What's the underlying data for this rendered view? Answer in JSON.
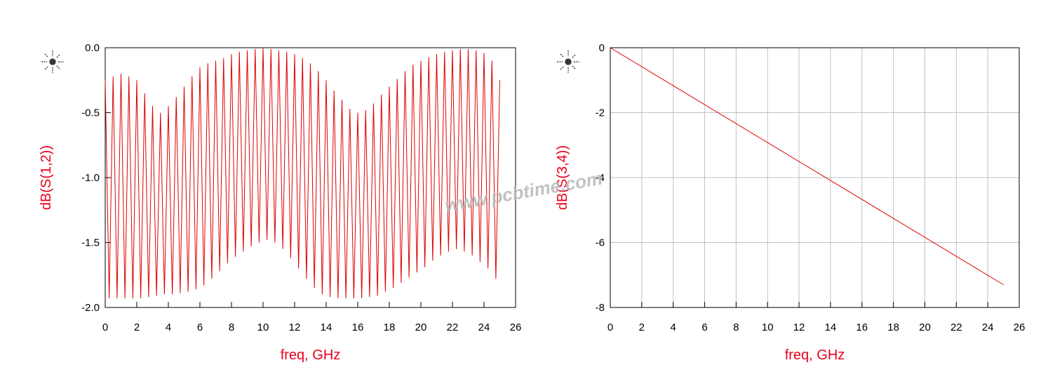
{
  "chart_data": [
    {
      "type": "line",
      "xlabel": "freq, GHz",
      "ylabel": "dB(S(1,2))",
      "grid": false,
      "xlim": [
        0,
        26
      ],
      "xticks": [
        0,
        2,
        4,
        6,
        8,
        10,
        12,
        14,
        16,
        18,
        20,
        22,
        24,
        26
      ],
      "ylim": [
        -2,
        0
      ],
      "yticks": [
        {
          "value": -2,
          "label": "-2.0"
        },
        {
          "value": -1.5,
          "label": "-1.5"
        },
        {
          "value": -1,
          "label": "-1.0"
        },
        {
          "value": -0.5,
          "label": "-0.5"
        },
        {
          "value": 0,
          "label": "0.0"
        }
      ],
      "series": [
        {
          "color": "#dd0000",
          "x": [
            0,
            0.25,
            0.5,
            0.75,
            1,
            1.25,
            1.5,
            1.75,
            2,
            2.25,
            2.5,
            2.75,
            3,
            3.25,
            3.5,
            3.75,
            4,
            4.25,
            4.5,
            4.75,
            5,
            5.25,
            5.5,
            5.75,
            6,
            6.25,
            6.5,
            6.75,
            7,
            7.25,
            7.5,
            7.75,
            8,
            8.25,
            8.5,
            8.75,
            9,
            9.25,
            9.5,
            9.75,
            10,
            10.25,
            10.5,
            10.75,
            11,
            11.25,
            11.5,
            11.75,
            12,
            12.25,
            12.5,
            12.75,
            13,
            13.25,
            13.5,
            13.75,
            14,
            14.25,
            14.5,
            14.75,
            15,
            15.25,
            15.5,
            15.75,
            16,
            16.25,
            16.5,
            16.75,
            17,
            17.25,
            17.5,
            17.75,
            18,
            18.25,
            18.5,
            18.75,
            19,
            19.25,
            19.5,
            19.75,
            20,
            20.25,
            20.5,
            20.75,
            21,
            21.25,
            21.5,
            21.75,
            22,
            22.25,
            22.5,
            22.75,
            23,
            23.25,
            23.5,
            23.75,
            24,
            24.25,
            24.5,
            24.75,
            25
          ],
          "values": [
            -0.25,
            -1.93,
            -0.22,
            -1.93,
            -0.2,
            -1.93,
            -0.22,
            -1.93,
            -0.25,
            -1.93,
            -0.35,
            -1.92,
            -0.45,
            -1.91,
            -0.5,
            -1.9,
            -0.45,
            -1.9,
            -0.38,
            -1.89,
            -0.3,
            -1.88,
            -0.22,
            -1.86,
            -0.15,
            -1.83,
            -0.12,
            -1.78,
            -0.1,
            -1.72,
            -0.08,
            -1.66,
            -0.05,
            -1.61,
            -0.03,
            -1.57,
            -0.02,
            -1.53,
            -0.01,
            -1.5,
            0,
            -1.48,
            -0.01,
            -1.5,
            -0.02,
            -1.55,
            -0.03,
            -1.62,
            -0.05,
            -1.7,
            -0.08,
            -1.78,
            -0.12,
            -1.85,
            -0.18,
            -1.9,
            -0.25,
            -1.92,
            -0.33,
            -1.93,
            -0.4,
            -1.93,
            -0.47,
            -1.93,
            -0.5,
            -1.93,
            -0.48,
            -1.92,
            -0.43,
            -1.91,
            -0.36,
            -1.88,
            -0.3,
            -1.85,
            -0.24,
            -1.81,
            -0.18,
            -1.77,
            -0.13,
            -1.73,
            -0.1,
            -1.69,
            -0.07,
            -1.64,
            -0.05,
            -1.6,
            -0.03,
            -1.57,
            -0.02,
            -1.55,
            -0.01,
            -1.57,
            -0.01,
            -1.6,
            -0.02,
            -1.65,
            -0.04,
            -1.7,
            -0.1,
            -1.78,
            -0.25
          ]
        }
      ]
    },
    {
      "type": "line",
      "xlabel": "freq, GHz",
      "ylabel": "dB(S(3,4))",
      "grid": true,
      "xlim": [
        0,
        26
      ],
      "xticks": [
        0,
        2,
        4,
        6,
        8,
        10,
        12,
        14,
        16,
        18,
        20,
        22,
        24,
        26
      ],
      "ylim": [
        -8,
        0
      ],
      "yticks": [
        0,
        -2,
        -4,
        -6,
        -8
      ],
      "series": [
        {
          "color": "#dd0000",
          "x": [
            0,
            25
          ],
          "values": [
            0,
            -7.3
          ]
        }
      ]
    }
  ],
  "watermark": "www.pcbtime.com"
}
